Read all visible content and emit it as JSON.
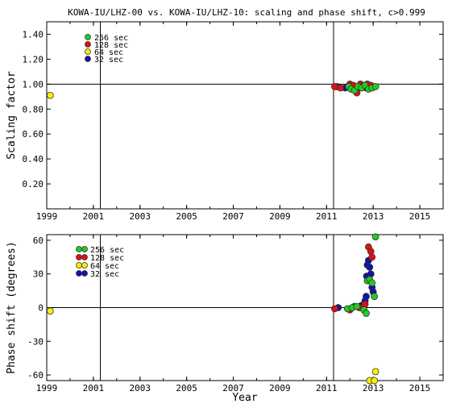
{
  "title": "KOWA-IU/LHZ-00 vs. KOWA-IU/LHZ-10: scaling and phase shift, c>0.999",
  "colors": {
    "256 sec": "#22cc22",
    "128 sec": "#dd1111",
    "64 sec": "#ffee00",
    "32 sec": "#1111aa"
  },
  "chart_data": [
    {
      "type": "scatter",
      "title": "KOWA-IU/LHZ-00 vs. KOWA-IU/LHZ-10: scaling and phase shift, c>0.999",
      "xlabel": "",
      "ylabel": "Scaling factor",
      "xlim": [
        1999.0,
        2016.0
      ],
      "ylim": [
        0.0,
        1.5
      ],
      "x_ticks": [
        "1999",
        "2001",
        "2003",
        "2005",
        "2007",
        "2009",
        "2011",
        "2013",
        "2015"
      ],
      "y_ticks": [
        "0.20",
        "0.40",
        "0.60",
        "0.80",
        "1.00",
        "1.20",
        "1.40"
      ],
      "reference_line_y": 1.0,
      "vertical_lines_x": [
        2001.3,
        2011.3
      ],
      "legend": [
        "256 sec",
        "128 sec",
        "64 sec",
        "32 sec"
      ],
      "legend_position": "top-left",
      "series": [
        {
          "name": "256 sec",
          "x": [
            2011.95,
            2012.05,
            2012.2,
            2012.35,
            2012.5,
            2012.65,
            2012.8,
            2012.95,
            2013.1
          ],
          "y": [
            0.98,
            0.96,
            0.95,
            0.98,
            0.97,
            0.99,
            0.96,
            0.97,
            0.98
          ]
        },
        {
          "name": "128 sec",
          "x": [
            2011.35,
            2011.6,
            2012.0,
            2012.15,
            2012.3,
            2012.45,
            2012.6,
            2012.75,
            2012.9
          ],
          "y": [
            0.98,
            0.97,
            1.0,
            0.99,
            0.93,
            1.0,
            0.99,
            1.0,
            0.99
          ]
        },
        {
          "name": "64 sec",
          "x": [
            1999.15
          ],
          "y": [
            0.91
          ]
        },
        {
          "name": "32 sec",
          "x": [
            2011.45,
            2011.8,
            2012.1,
            2012.4,
            2012.7,
            2013.0
          ],
          "y": [
            0.98,
            0.97,
            0.97,
            0.98,
            0.97,
            0.98
          ]
        }
      ]
    },
    {
      "type": "scatter",
      "title": "",
      "xlabel": "Year",
      "ylabel": "Phase shift (degrees)",
      "xlim": [
        1999.0,
        2016.0
      ],
      "ylim": [
        -65.0,
        65.0
      ],
      "x_ticks": [
        "1999",
        "2001",
        "2003",
        "2005",
        "2007",
        "2009",
        "2011",
        "2013",
        "2015"
      ],
      "y_ticks": [
        "-60",
        "-30",
        "0",
        "30",
        "60"
      ],
      "reference_line_y": 0.0,
      "vertical_lines_x": [
        2001.3,
        2011.3
      ],
      "legend": [
        "256 sec",
        "128 sec",
        "64 sec",
        "32 sec"
      ],
      "legend_position": "top-left",
      "series": [
        {
          "name": "256 sec",
          "x": [
            2011.9,
            2012.1,
            2012.3,
            2012.6,
            2012.7,
            2012.75,
            2012.85,
            2012.95,
            2013.05,
            2013.1
          ],
          "y": [
            -1,
            0,
            1,
            -2,
            -5,
            24,
            25,
            22,
            10,
            63
          ]
        },
        {
          "name": "128 sec",
          "x": [
            2011.35,
            2012.0,
            2012.4,
            2012.65,
            2012.8,
            2012.9,
            2012.95
          ],
          "y": [
            -1,
            -2,
            0,
            3,
            54,
            50,
            45
          ]
        },
        {
          "name": "64 sec",
          "x": [
            1999.15,
            2012.85,
            2013.05,
            2013.1
          ],
          "y": [
            -3,
            -65,
            -65,
            -57
          ]
        },
        {
          "name": "32 sec",
          "x": [
            2011.5,
            2012.2,
            2012.5,
            2012.65,
            2012.7,
            2012.72,
            2012.75,
            2012.8,
            2012.85,
            2012.9,
            2012.95,
            2013.0
          ],
          "y": [
            0,
            1,
            2,
            6,
            10,
            28,
            38,
            42,
            36,
            30,
            18,
            14
          ]
        }
      ]
    }
  ]
}
